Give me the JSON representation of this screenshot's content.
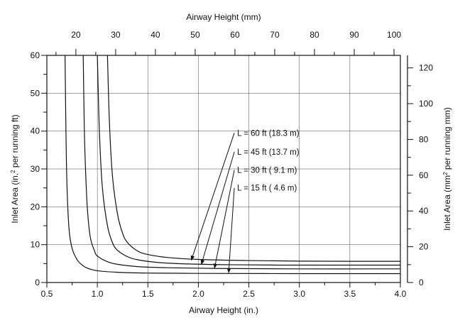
{
  "chart_data": {
    "type": "line",
    "x_axis_bottom": {
      "label": "Airway Height (in.)",
      "range": [
        0.5,
        4.0
      ],
      "ticks": [
        0.5,
        1.0,
        1.5,
        2.0,
        2.5,
        3.0,
        3.5,
        4.0
      ],
      "tick_labels": [
        "0.5",
        "1.0",
        "1.5",
        "2.0",
        "2.5",
        "3.0",
        "3.5",
        "4.0"
      ]
    },
    "x_axis_top": {
      "label": "Airway Height (mm)",
      "ticks": [
        20,
        30,
        40,
        50,
        60,
        70,
        80,
        90,
        100
      ],
      "tick_labels": [
        "20",
        "30",
        "40",
        "50",
        "60",
        "70",
        "80",
        "90",
        "100"
      ]
    },
    "y_axis_left": {
      "label_main": "Inlet Area (in.",
      "label_sup": "2",
      "label_tail": " per running ft)",
      "range": [
        0,
        60
      ],
      "ticks": [
        0,
        10,
        20,
        30,
        40,
        50,
        60
      ],
      "tick_labels": [
        "0",
        "10",
        "20",
        "30",
        "40",
        "50",
        "60"
      ]
    },
    "y_axis_right": {
      "label_main": "Inlet Area (mm",
      "label_sup": "2",
      "label_tail": " per running mm)",
      "ticks": [
        0,
        20,
        40,
        60,
        80,
        100,
        120
      ],
      "tick_labels": [
        "0",
        "20",
        "40",
        "60",
        "80",
        "100",
        "120"
      ]
    },
    "grid": true,
    "series": [
      {
        "name": "L = 60 ft (18.3 m)",
        "x": [
          1.1,
          1.12,
          1.15,
          1.2,
          1.25,
          1.3,
          1.4,
          1.5,
          1.7,
          2.0,
          2.5,
          3.0,
          3.5,
          4.0
        ],
        "y": [
          60,
          42,
          28,
          18,
          13,
          10.5,
          8.3,
          7.4,
          6.6,
          6.1,
          5.8,
          5.65,
          5.6,
          5.6
        ]
      },
      {
        "name": "L = 45 ft (13.7 m)",
        "x": [
          1.0,
          1.02,
          1.05,
          1.1,
          1.15,
          1.2,
          1.3,
          1.4,
          1.6,
          1.9,
          2.3,
          2.8,
          3.5,
          4.0
        ],
        "y": [
          60,
          40,
          25,
          15,
          10.5,
          8.5,
          6.8,
          6.0,
          5.3,
          4.9,
          4.7,
          4.6,
          4.6,
          4.6
        ]
      },
      {
        "name": "L = 30 ft ( 9.1 m)",
        "x": [
          0.86,
          0.87,
          0.88,
          0.9,
          0.93,
          0.97,
          1.0,
          1.1,
          1.2,
          1.4,
          1.7,
          2.2,
          3.0,
          4.0
        ],
        "y": [
          60,
          42,
          32,
          20,
          12,
          8.5,
          7.0,
          5.5,
          4.8,
          4.2,
          3.9,
          3.7,
          3.6,
          3.6
        ]
      },
      {
        "name": "L = 15 ft ( 4.6 m)",
        "x": [
          0.68,
          0.69,
          0.7,
          0.72,
          0.75,
          0.8,
          0.85,
          0.9,
          1.0,
          1.2,
          1.5,
          2.0,
          3.0,
          4.0
        ],
        "y": [
          60,
          38,
          25,
          14,
          9.0,
          6.0,
          4.6,
          3.8,
          3.1,
          2.7,
          2.5,
          2.4,
          2.35,
          2.35
        ]
      }
    ],
    "annotations": [
      {
        "text": "L = 60 ft (18.3 m)",
        "anchor_x": 2.37,
        "anchor_y": 39.5,
        "arrow_to": [
          1.93,
          5.9
        ]
      },
      {
        "text": "L = 45 ft (13.7 m)",
        "anchor_x": 2.37,
        "anchor_y": 34.5,
        "arrow_to": [
          2.03,
          4.8
        ]
      },
      {
        "text": "L = 30 ft ( 9.1 m)",
        "anchor_x": 2.37,
        "anchor_y": 29.7,
        "arrow_to": [
          2.16,
          3.8
        ]
      },
      {
        "text": "L = 15 ft ( 4.6 m)",
        "anchor_x": 2.37,
        "anchor_y": 25.0,
        "arrow_to": [
          2.3,
          2.6
        ]
      }
    ]
  }
}
